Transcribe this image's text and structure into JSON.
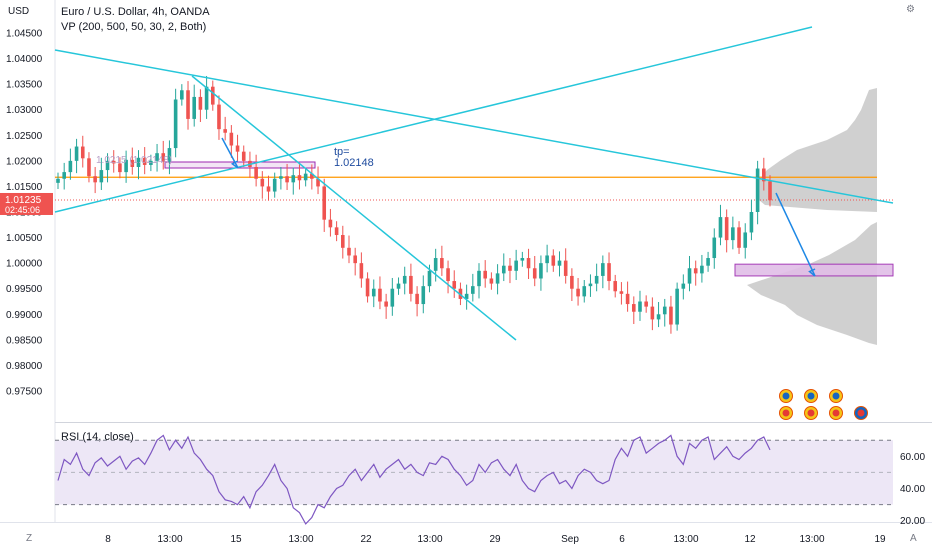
{
  "header": {
    "symbol_title": "Euro / U.S. Dollar, 4h, OANDA",
    "indicator_vp": "VP (200, 500, 50, 30, 2, Both)",
    "currency": "USD"
  },
  "rsi_panel": {
    "label": "RSI (14, close)"
  },
  "annotation": {
    "tp_label": "tp=",
    "tp_value": "1.02148",
    "faded_label": "1.0215 (1.02148)"
  },
  "price_badge": {
    "price": "1.01235",
    "countdown": "02:45:06"
  },
  "buttons": {
    "zoom_z": "Z",
    "auto_a": "A",
    "settings": "⚙"
  },
  "colors": {
    "up": "#26a69a",
    "down": "#ef5350",
    "trendline": "#26c6da",
    "level": "#ff9800",
    "arrow": "#1e88e5",
    "zone_fill": "#e1bee7",
    "zone_border": "#9c27b0",
    "rsi_line": "#7e57c2",
    "rsi_band": "#ede7f6",
    "volume_profile": "#c8c8c8"
  },
  "chart_data": {
    "type": "candlestick",
    "title": "Euro / U.S. Dollar, 4h, OANDA",
    "ylabel": "USD",
    "ylim": [
      0.972,
      1.045
    ],
    "price_ticks": [
      "1.04500",
      "1.04000",
      "1.03500",
      "1.03000",
      "1.02500",
      "1.02000",
      "1.01500",
      "1.01000",
      "1.00500",
      "1.00000",
      "0.99500",
      "0.99000",
      "0.98500",
      "0.98000",
      "0.97500"
    ],
    "x_ticks": [
      "8",
      "13:00",
      "15",
      "13:00",
      "22",
      "13:00",
      "29",
      "Sep",
      "6",
      "13:00",
      "12",
      "13:00",
      "19"
    ],
    "current_price": 1.01235,
    "horizontal_level": 1.0168,
    "target_zone": [
      0.9975,
      0.9998
    ],
    "tp_level": 1.02148,
    "candles_close": [
      1.0165,
      1.0178,
      1.02,
      1.0228,
      1.0205,
      1.017,
      1.0158,
      1.0182,
      1.02,
      1.0195,
      1.0178,
      1.0202,
      1.0188,
      1.0206,
      1.0192,
      1.02,
      1.0215,
      1.0198,
      1.0225,
      1.032,
      1.0338,
      1.0282,
      1.0325,
      1.03,
      1.0345,
      1.031,
      1.0262,
      1.0255,
      1.023,
      1.0218,
      1.02,
      1.0188,
      1.0165,
      1.015,
      1.014,
      1.0165,
      1.017,
      1.0158,
      1.0172,
      1.0162,
      1.0175,
      1.0165,
      1.015,
      1.0085,
      1.007,
      1.0055,
      1.003,
      1.0015,
      1.0,
      0.997,
      0.9935,
      0.995,
      0.9925,
      0.9915,
      0.995,
      0.996,
      0.9975,
      0.994,
      0.992,
      0.9955,
      0.9985,
      1.001,
      0.999,
      0.9965,
      0.995,
      0.993,
      0.994,
      0.9955,
      0.9985,
      0.997,
      0.996,
      0.998,
      0.9995,
      0.9985,
      1.0005,
      1.001,
      0.999,
      0.997,
      1.0,
      1.0015,
      0.9995,
      1.0005,
      0.9975,
      0.995,
      0.9935,
      0.9955,
      0.996,
      0.9975,
      1.0,
      0.9965,
      0.9945,
      0.994,
      0.992,
      0.9905,
      0.9925,
      0.9915,
      0.989,
      0.99,
      0.9915,
      0.988,
      0.995,
      0.996,
      0.999,
      0.998,
      0.9995,
      1.001,
      1.005,
      1.009,
      1.0045,
      1.007,
      1.003,
      1.006,
      1.01,
      1.0185,
      1.016,
      1.0123
    ],
    "rsi": {
      "label": "RSI (14, close)",
      "ylim": [
        15,
        75
      ],
      "ticks": [
        20,
        40,
        60
      ],
      "bands": [
        30,
        70
      ],
      "values": [
        45,
        58,
        55,
        62,
        52,
        48,
        56,
        59,
        54,
        57,
        60,
        52,
        57,
        59,
        55,
        62,
        70,
        73,
        64,
        70,
        65,
        72,
        62,
        58,
        52,
        48,
        38,
        33,
        32,
        30,
        35,
        28,
        38,
        42,
        48,
        55,
        45,
        40,
        28,
        25,
        18,
        22,
        30,
        28,
        35,
        40,
        42,
        48,
        52,
        45,
        50,
        55,
        47,
        52,
        55,
        58,
        52,
        55,
        50,
        48,
        56,
        55,
        60,
        58,
        52,
        48,
        42,
        45,
        55,
        50,
        56,
        58,
        52,
        48,
        55,
        45,
        40,
        38,
        45,
        48,
        50,
        43,
        45,
        40,
        48,
        52,
        50,
        45,
        43,
        45,
        58,
        65,
        60,
        70,
        72,
        62,
        65,
        68,
        70,
        73,
        60,
        55,
        68,
        65,
        70,
        72,
        58,
        62,
        66,
        60,
        58,
        62,
        65,
        70,
        72,
        64
      ]
    },
    "events": [
      "US economic events",
      "US economic events",
      "US economic events",
      "US economic events",
      "EU economic events"
    ]
  }
}
